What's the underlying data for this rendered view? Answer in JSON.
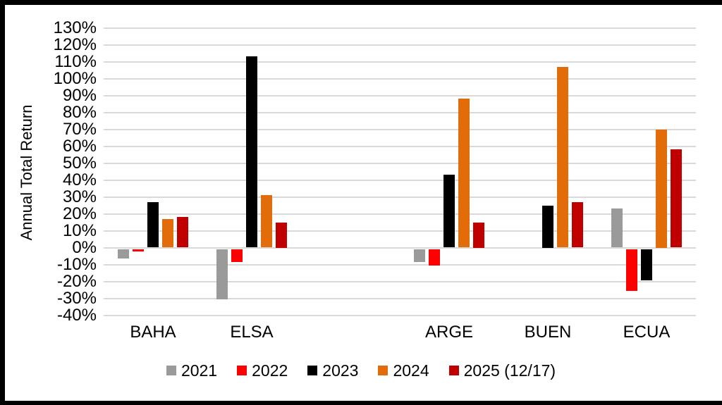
{
  "chart_data": {
    "type": "bar",
    "title": "",
    "categories": [
      "BAHA",
      "ELSA",
      "",
      "ARGE",
      "BUEN",
      "ECUA"
    ],
    "series": [
      {
        "name": "2021",
        "color": "#9A9A9A",
        "values": [
          -6,
          -30,
          null,
          -8,
          null,
          23
        ]
      },
      {
        "name": "2022",
        "color": "#FF0000",
        "values": [
          -2,
          -8,
          null,
          -10,
          null,
          -25
        ]
      },
      {
        "name": "2023",
        "color": "#000000",
        "values": [
          27,
          113,
          null,
          43,
          25,
          -19
        ]
      },
      {
        "name": "2024",
        "color": "#E36C0A",
        "values": [
          17,
          31,
          null,
          88,
          107,
          70
        ]
      },
      {
        "name": "2025 (12/17)",
        "color": "#C00000",
        "values": [
          18,
          15,
          null,
          15,
          27,
          58
        ]
      }
    ],
    "xlabel": "",
    "ylabel": "Annual Total Return",
    "ylim": [
      -40,
      130
    ],
    "ytick_step": 10,
    "ytick_labels": [
      "130%",
      "120%",
      "110%",
      "100%",
      "90%",
      "80%",
      "70%",
      "60%",
      "50%",
      "40%",
      "30%",
      "20%",
      "10%",
      "0%",
      "-10%",
      "-20%",
      "-30%",
      "-40%"
    ],
    "unit": "%",
    "grid": true,
    "gridline_color": "#D9D9D9",
    "legend_position": "bottom",
    "background": "#FFFFFF",
    "frame_color": "#000000"
  }
}
